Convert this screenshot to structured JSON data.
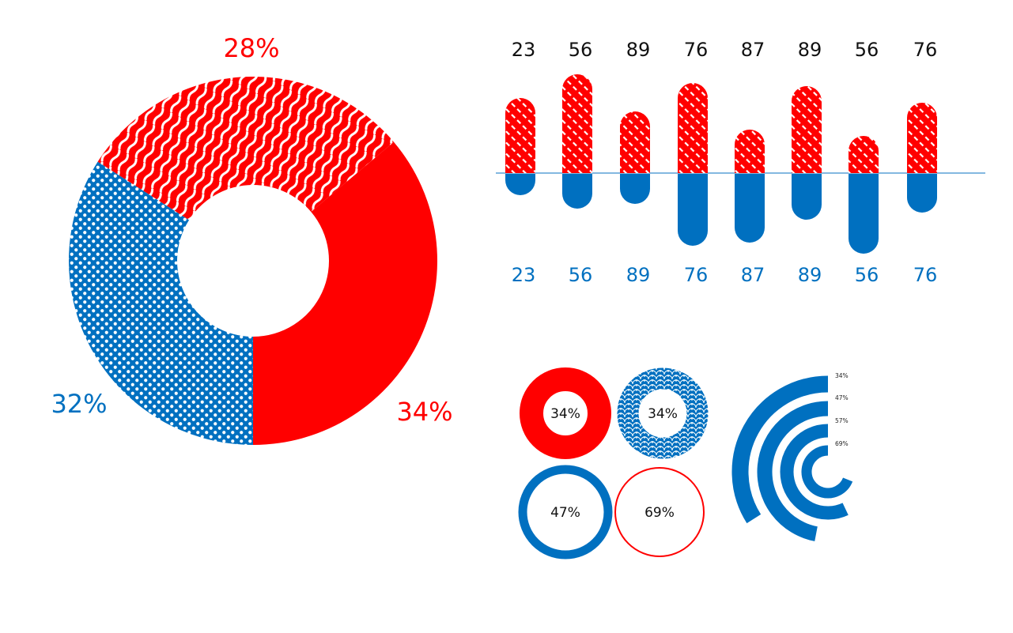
{
  "colors": {
    "red": "#ff0000",
    "blue": "#0070c0",
    "black": "#111111",
    "axis": "#5aa0d6",
    "white": "#ffffff"
  },
  "chart_data": [
    {
      "type": "pie",
      "variant": "donut",
      "slices": [
        {
          "label": "34%",
          "value": 34,
          "color": "#ff0000",
          "pattern": "solid"
        },
        {
          "label": "32%",
          "value": 32,
          "color": "#0070c0",
          "pattern": "dots"
        },
        {
          "label": "28%",
          "value": 28,
          "color": "#ff0000",
          "pattern": "waves"
        }
      ]
    },
    {
      "type": "bar",
      "variant": "diverging",
      "categories": [
        "23",
        "56",
        "89",
        "76",
        "87",
        "89",
        "56",
        "76"
      ],
      "series": [
        {
          "values": [
            23,
            56,
            89,
            76,
            87,
            89,
            56,
            76
          ],
          "color": "#ff0000",
          "pattern": "dashes",
          "direction": "up"
        },
        {
          "values": [
            23,
            56,
            89,
            76,
            87,
            89,
            56,
            76
          ],
          "color": "#0070c0",
          "pattern": "solid",
          "direction": "down"
        }
      ]
    },
    {
      "type": "pie",
      "variant": "ring-grid",
      "rings": [
        {
          "label": "34%",
          "value": 34,
          "style": "thick-red"
        },
        {
          "label": "34%",
          "value": 34,
          "style": "thick-blue-scales"
        },
        {
          "label": "47%",
          "value": 47,
          "style": "medium-blue"
        },
        {
          "label": "69%",
          "value": 69,
          "style": "thin-red"
        }
      ]
    },
    {
      "type": "bar",
      "variant": "radial",
      "bars": [
        {
          "label": "34%",
          "value": 34
        },
        {
          "label": "47%",
          "value": 47
        },
        {
          "label": "57%",
          "value": 57
        },
        {
          "label": "69%",
          "value": 69
        }
      ]
    }
  ]
}
